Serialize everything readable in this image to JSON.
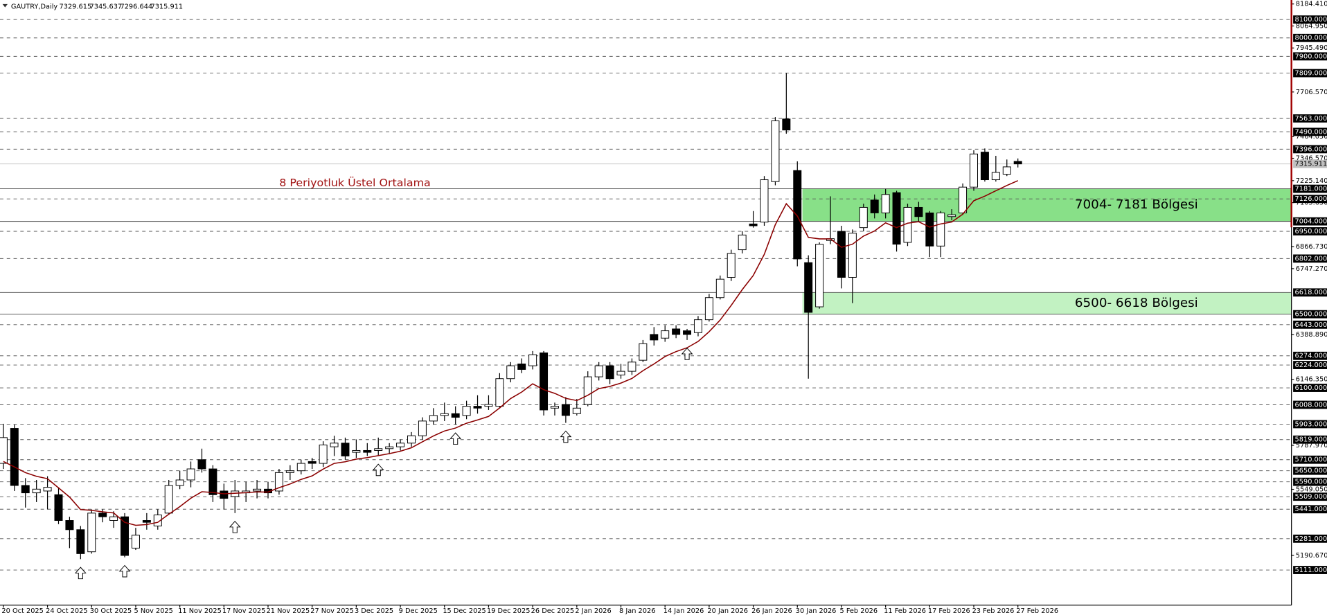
{
  "chart_data": {
    "type": "candlestick",
    "title": "GAUTRY,Daily",
    "categories": [
      "20 Oct 2025",
      null,
      null,
      null,
      "24 Oct 2025",
      null,
      null,
      null,
      "30 Oct 2025",
      null,
      null,
      null,
      "5 Nov 2025",
      null,
      null,
      null,
      "11 Nov 2025",
      null,
      null,
      null,
      "17 Nov 2025",
      null,
      null,
      null,
      "21 Nov 2025",
      null,
      null,
      null,
      "27 Nov 2025",
      null,
      null,
      null,
      "3 Dec 2025",
      null,
      null,
      null,
      "9 Dec 2025",
      null,
      null,
      null,
      "15 Dec 2025",
      null,
      null,
      null,
      "19 Dec 2025",
      null,
      null,
      null,
      "26 Dec 2025",
      null,
      null,
      null,
      "2 Jan 2026",
      null,
      null,
      null,
      "8 Jan 2026",
      null,
      null,
      null,
      "14 Jan 2026",
      null,
      null,
      null,
      "20 Jan 2026",
      null,
      null,
      null,
      "26 Jan 2026",
      null,
      null,
      null,
      "30 Jan 2026",
      null,
      null,
      null,
      "5 Feb 2026",
      null,
      null,
      null,
      "11 Feb 2026",
      null,
      null,
      null,
      "17 Feb 2026",
      null,
      null,
      null,
      "23 Feb 2026",
      null,
      null,
      null,
      "27 Feb 2026"
    ],
    "open": [
      5690,
      5880,
      5570,
      5530,
      5540,
      5520,
      5380,
      5330,
      5210,
      5420,
      5380,
      5400,
      5230,
      5380,
      5350,
      5420,
      5570,
      5600,
      5710,
      5660,
      5540,
      5510,
      5530,
      5540,
      5550,
      5540,
      5640,
      5650,
      5700,
      5690,
      5780,
      5800,
      5750,
      5760,
      5760,
      5770,
      5780,
      5800,
      5840,
      5920,
      5950,
      5960,
      5950,
      6000,
      6000,
      6000,
      6150,
      6230,
      6220,
      6290,
      5990,
      6010,
      5960,
      6010,
      6160,
      6220,
      6170,
      6190,
      6250,
      6390,
      6370,
      6420,
      6410,
      6400,
      6470,
      6590,
      6700,
      6850,
      6990,
      7000,
      7220,
      7560,
      7280,
      6780,
      6540,
      6900,
      6950,
      6700,
      6970,
      7120,
      7050,
      7160,
      6890,
      7080,
      7050,
      6870,
      7030,
      7050,
      7190,
      7380,
      7230,
      7260,
      7329.615
    ],
    "high": [
      5905,
      5900,
      5610,
      5600,
      5620,
      5560,
      5400,
      5350,
      5440,
      5440,
      5430,
      5420,
      5340,
      5420,
      5440,
      5600,
      5650,
      5700,
      5770,
      5680,
      5580,
      5600,
      5590,
      5600,
      5590,
      5660,
      5680,
      5710,
      5720,
      5810,
      5840,
      5830,
      5820,
      5800,
      5830,
      5800,
      5820,
      5860,
      5940,
      5990,
      6020,
      6000,
      6030,
      6060,
      6060,
      6180,
      6240,
      6260,
      6300,
      6300,
      6020,
      6050,
      6040,
      6190,
      6240,
      6240,
      6230,
      6260,
      6360,
      6430,
      6440,
      6440,
      6420,
      6490,
      6610,
      6710,
      6850,
      6950,
      7060,
      7250,
      7570,
      7810,
      7330,
      6820,
      6890,
      7140,
      6980,
      6960,
      7100,
      7150,
      7180,
      7170,
      7100,
      7110,
      7060,
      7060,
      7070,
      7210,
      7390,
      7400,
      7360,
      7340,
      7345.637
    ],
    "low": [
      5660,
      5540,
      5450,
      5480,
      5440,
      5360,
      5230,
      5170,
      5200,
      5370,
      5340,
      5180,
      5220,
      5330,
      5330,
      5410,
      5550,
      5560,
      5640,
      5480,
      5440,
      5420,
      5480,
      5500,
      5500,
      5520,
      5600,
      5630,
      5660,
      5670,
      5730,
      5710,
      5720,
      5730,
      5730,
      5740,
      5760,
      5780,
      5820,
      5900,
      5920,
      5900,
      5930,
      5960,
      5980,
      5990,
      6130,
      6180,
      6200,
      5950,
      5950,
      5910,
      5950,
      6000,
      6140,
      6120,
      6150,
      6170,
      6240,
      6330,
      6350,
      6370,
      6360,
      6380,
      6460,
      6580,
      6680,
      6830,
      6970,
      6980,
      7200,
      7480,
      6760,
      6150,
      6530,
      6880,
      6640,
      6560,
      6950,
      7020,
      7020,
      6840,
      6870,
      7000,
      6810,
      6810,
      7010,
      7040,
      7170,
      7220,
      7220,
      7250,
      7296.644
    ],
    "close": [
      5830,
      5570,
      5530,
      5550,
      5560,
      5380,
      5330,
      5200,
      5420,
      5400,
      5400,
      5190,
      5300,
      5370,
      5410,
      5570,
      5600,
      5660,
      5660,
      5520,
      5500,
      5540,
      5540,
      5550,
      5530,
      5640,
      5650,
      5690,
      5690,
      5790,
      5800,
      5730,
      5760,
      5750,
      5770,
      5780,
      5800,
      5840,
      5920,
      5950,
      5960,
      5940,
      6000,
      5990,
      6010,
      6150,
      6220,
      6200,
      6280,
      5980,
      6000,
      5950,
      5990,
      6160,
      6220,
      6150,
      6190,
      6240,
      6340,
      6360,
      6410,
      6390,
      6390,
      6470,
      6590,
      6690,
      6830,
      6930,
      6980,
      7230,
      7550,
      7500,
      6800,
      6510,
      6880,
      6910,
      6700,
      6940,
      7080,
      7050,
      7150,
      6880,
      7080,
      7030,
      6870,
      7050,
      7040,
      7190,
      7370,
      7230,
      7270,
      7300,
      7315.911
    ],
    "ema": {
      "name": "8 Periyotluk Üstel Ortalama",
      "color": "#8b0000",
      "values": [
        5700,
        5671,
        5640,
        5620,
        5607,
        5557,
        5507,
        5439,
        5435,
        5427,
        5421,
        5370,
        5354,
        5358,
        5370,
        5414,
        5455,
        5501,
        5536,
        5532,
        5525,
        5528,
        5531,
        5535,
        5534,
        5558,
        5578,
        5603,
        5622,
        5659,
        5690,
        5699,
        5713,
        5721,
        5732,
        5743,
        5756,
        5775,
        5807,
        5839,
        5866,
        5882,
        5908,
        5926,
        5945,
        5991,
        6042,
        6077,
        6122,
        6090,
        6070,
        6043,
        6031,
        6060,
        6096,
        6108,
        6126,
        6151,
        6193,
        6230,
        6270,
        6297,
        6318,
        6352,
        6405,
        6468,
        6548,
        6633,
        6710,
        6825,
        6986,
        7100,
        7033,
        6917,
        6909,
        6909,
        6863,
        6880,
        6924,
        6952,
        6996,
        6970,
        6994,
        7002,
        6973,
        6990,
        7001,
        7043,
        7116,
        7141,
        7170,
        7199,
        7225
      ]
    },
    "zones": [
      {
        "low": 7004,
        "high": 7181,
        "label": "7004- 7181 Bölgesi",
        "color": "#88e088"
      },
      {
        "low": 6500,
        "high": 6618,
        "label": "6500- 6618 Bölgesi",
        "color": "#c2f2c2"
      }
    ],
    "levels": [
      {
        "value": 8100,
        "label": "8100.000"
      },
      {
        "value": 8000,
        "label": "8000.000"
      },
      {
        "value": 7900,
        "label": "7900.000"
      },
      {
        "value": 7809,
        "label": "7809.000"
      },
      {
        "value": 7563,
        "label": "7563.000"
      },
      {
        "value": 7490,
        "label": "7490.000"
      },
      {
        "value": 7396,
        "label": "7396.000"
      },
      {
        "value": 7181,
        "label": "7181.000"
      },
      {
        "value": 7126,
        "label": "7126.000"
      },
      {
        "value": 7004,
        "label": "7004.000"
      },
      {
        "value": 6950,
        "label": "6950.000"
      },
      {
        "value": 6802,
        "label": "6802.000"
      },
      {
        "value": 6618,
        "label": "6618.000"
      },
      {
        "value": 6500,
        "label": "6500.000"
      },
      {
        "value": 6443,
        "label": "6443.000"
      },
      {
        "value": 6274,
        "label": "6274.000"
      },
      {
        "value": 6224,
        "label": "6224.000"
      },
      {
        "value": 6100,
        "label": "6100.000"
      },
      {
        "value": 6008,
        "label": "6008.000"
      },
      {
        "value": 5903,
        "label": "5903.000"
      },
      {
        "value": 5819,
        "label": "5819.000"
      },
      {
        "value": 5710,
        "label": "5710.000"
      },
      {
        "value": 5650,
        "label": "5650.000"
      },
      {
        "value": 5590,
        "label": "5590.000"
      },
      {
        "value": 5509,
        "label": "5509.000"
      },
      {
        "value": 5441,
        "label": "5441.000"
      },
      {
        "value": 5281,
        "label": "5281.000"
      },
      {
        "value": 5111,
        "label": "5111.000"
      }
    ],
    "ylim": [
      4920,
      8206
    ],
    "yticks": [
      {
        "value": 8184.41,
        "label": "8184.410"
      },
      {
        "value": 8064.95,
        "label": "8064.950"
      },
      {
        "value": 7945.49,
        "label": "7945.490"
      },
      {
        "value": 7706.57,
        "label": "7706.570"
      },
      {
        "value": 7464.05,
        "label": "7464.050"
      },
      {
        "value": 7346.57,
        "label": "7346.570"
      },
      {
        "value": 7225.14,
        "label": "7225.140"
      },
      {
        "value": 7105.65,
        "label": "7105.650"
      },
      {
        "value": 6866.73,
        "label": "6866.730"
      },
      {
        "value": 6747.27,
        "label": "6747.270"
      },
      {
        "value": 6388.89,
        "label": "6388.890"
      },
      {
        "value": 6146.35,
        "label": "6146.350"
      },
      {
        "value": 5787.97,
        "label": "5787.970"
      },
      {
        "value": 5549.05,
        "label": "5549.050"
      },
      {
        "value": 5190.67,
        "label": "5190.670"
      }
    ],
    "up_color": "#ffffff",
    "down_color": "#000000"
  }
}
